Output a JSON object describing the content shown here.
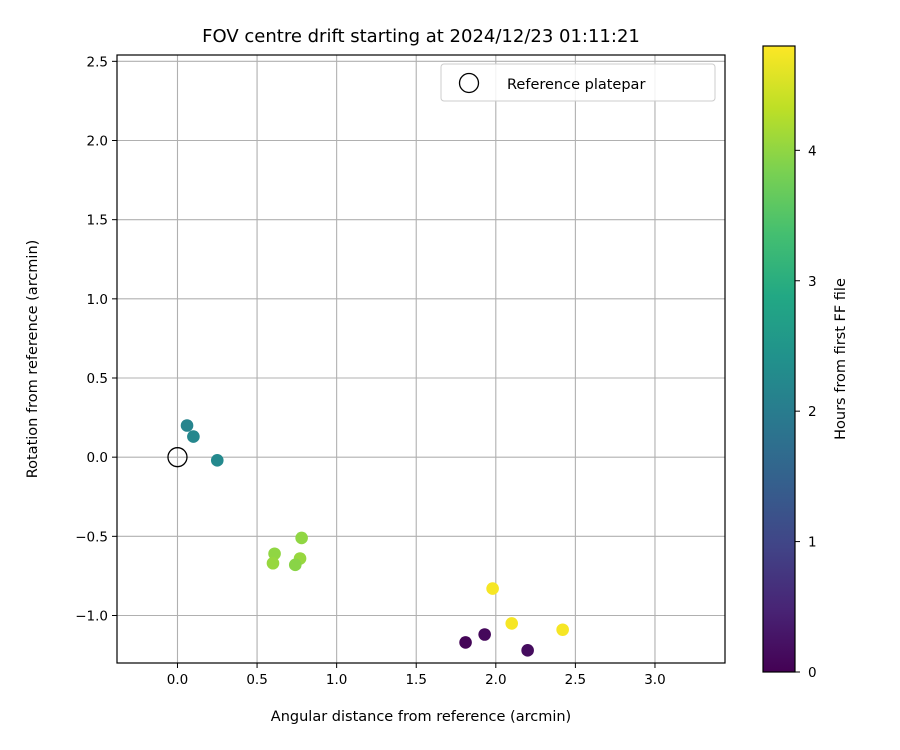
{
  "chart_data": {
    "type": "scatter",
    "title": "FOV centre drift starting at 2024/12/23 01:11:21",
    "xlabel": "Angular distance from reference (arcmin)",
    "ylabel": "Rotation from reference (arcmin)",
    "xlim": [
      -0.38,
      3.44
    ],
    "ylim": [
      -1.3,
      2.54
    ],
    "xticks": [
      0.0,
      0.5,
      1.0,
      1.5,
      2.0,
      2.5,
      3.0
    ],
    "xtick_labels": [
      "0.0",
      "0.5",
      "1.0",
      "1.5",
      "2.0",
      "2.5",
      "3.0"
    ],
    "yticks": [
      -1.0,
      -0.5,
      0.0,
      0.5,
      1.0,
      1.5,
      2.0,
      2.5
    ],
    "ytick_labels": [
      "−1.0",
      "−0.5",
      "0.0",
      "0.5",
      "1.0",
      "1.5",
      "2.0",
      "2.5"
    ],
    "grid": true,
    "legend": {
      "position": "top-right",
      "entries": [
        "Reference platepar"
      ]
    },
    "reference_point": {
      "x": 0.0,
      "y": 0.0
    },
    "colorbar": {
      "label": "Hours from first FF file",
      "colormap": "viridis",
      "range": [
        0,
        4.8
      ],
      "ticks": [
        0,
        1,
        2,
        3,
        4
      ],
      "tick_labels": [
        "0",
        "1",
        "2",
        "3",
        "4"
      ]
    },
    "points": [
      {
        "x": 1.81,
        "y": -1.17,
        "hours": 0.05
      },
      {
        "x": 1.93,
        "y": -1.12,
        "hours": 0.1
      },
      {
        "x": 2.2,
        "y": -1.22,
        "hours": 0.15
      },
      {
        "x": 0.06,
        "y": 0.2,
        "hours": 2.15
      },
      {
        "x": 0.1,
        "y": 0.13,
        "hours": 2.2
      },
      {
        "x": 0.25,
        "y": -0.02,
        "hours": 2.25
      },
      {
        "x": 0.78,
        "y": -0.51,
        "hours": 4.0
      },
      {
        "x": 0.61,
        "y": -0.61,
        "hours": 4.0
      },
      {
        "x": 0.6,
        "y": -0.67,
        "hours": 4.05
      },
      {
        "x": 0.77,
        "y": -0.64,
        "hours": 4.05
      },
      {
        "x": 0.74,
        "y": -0.68,
        "hours": 3.95
      },
      {
        "x": 1.98,
        "y": -0.83,
        "hours": 4.75
      },
      {
        "x": 2.1,
        "y": -1.05,
        "hours": 4.75
      },
      {
        "x": 2.42,
        "y": -1.09,
        "hours": 4.75
      }
    ]
  }
}
